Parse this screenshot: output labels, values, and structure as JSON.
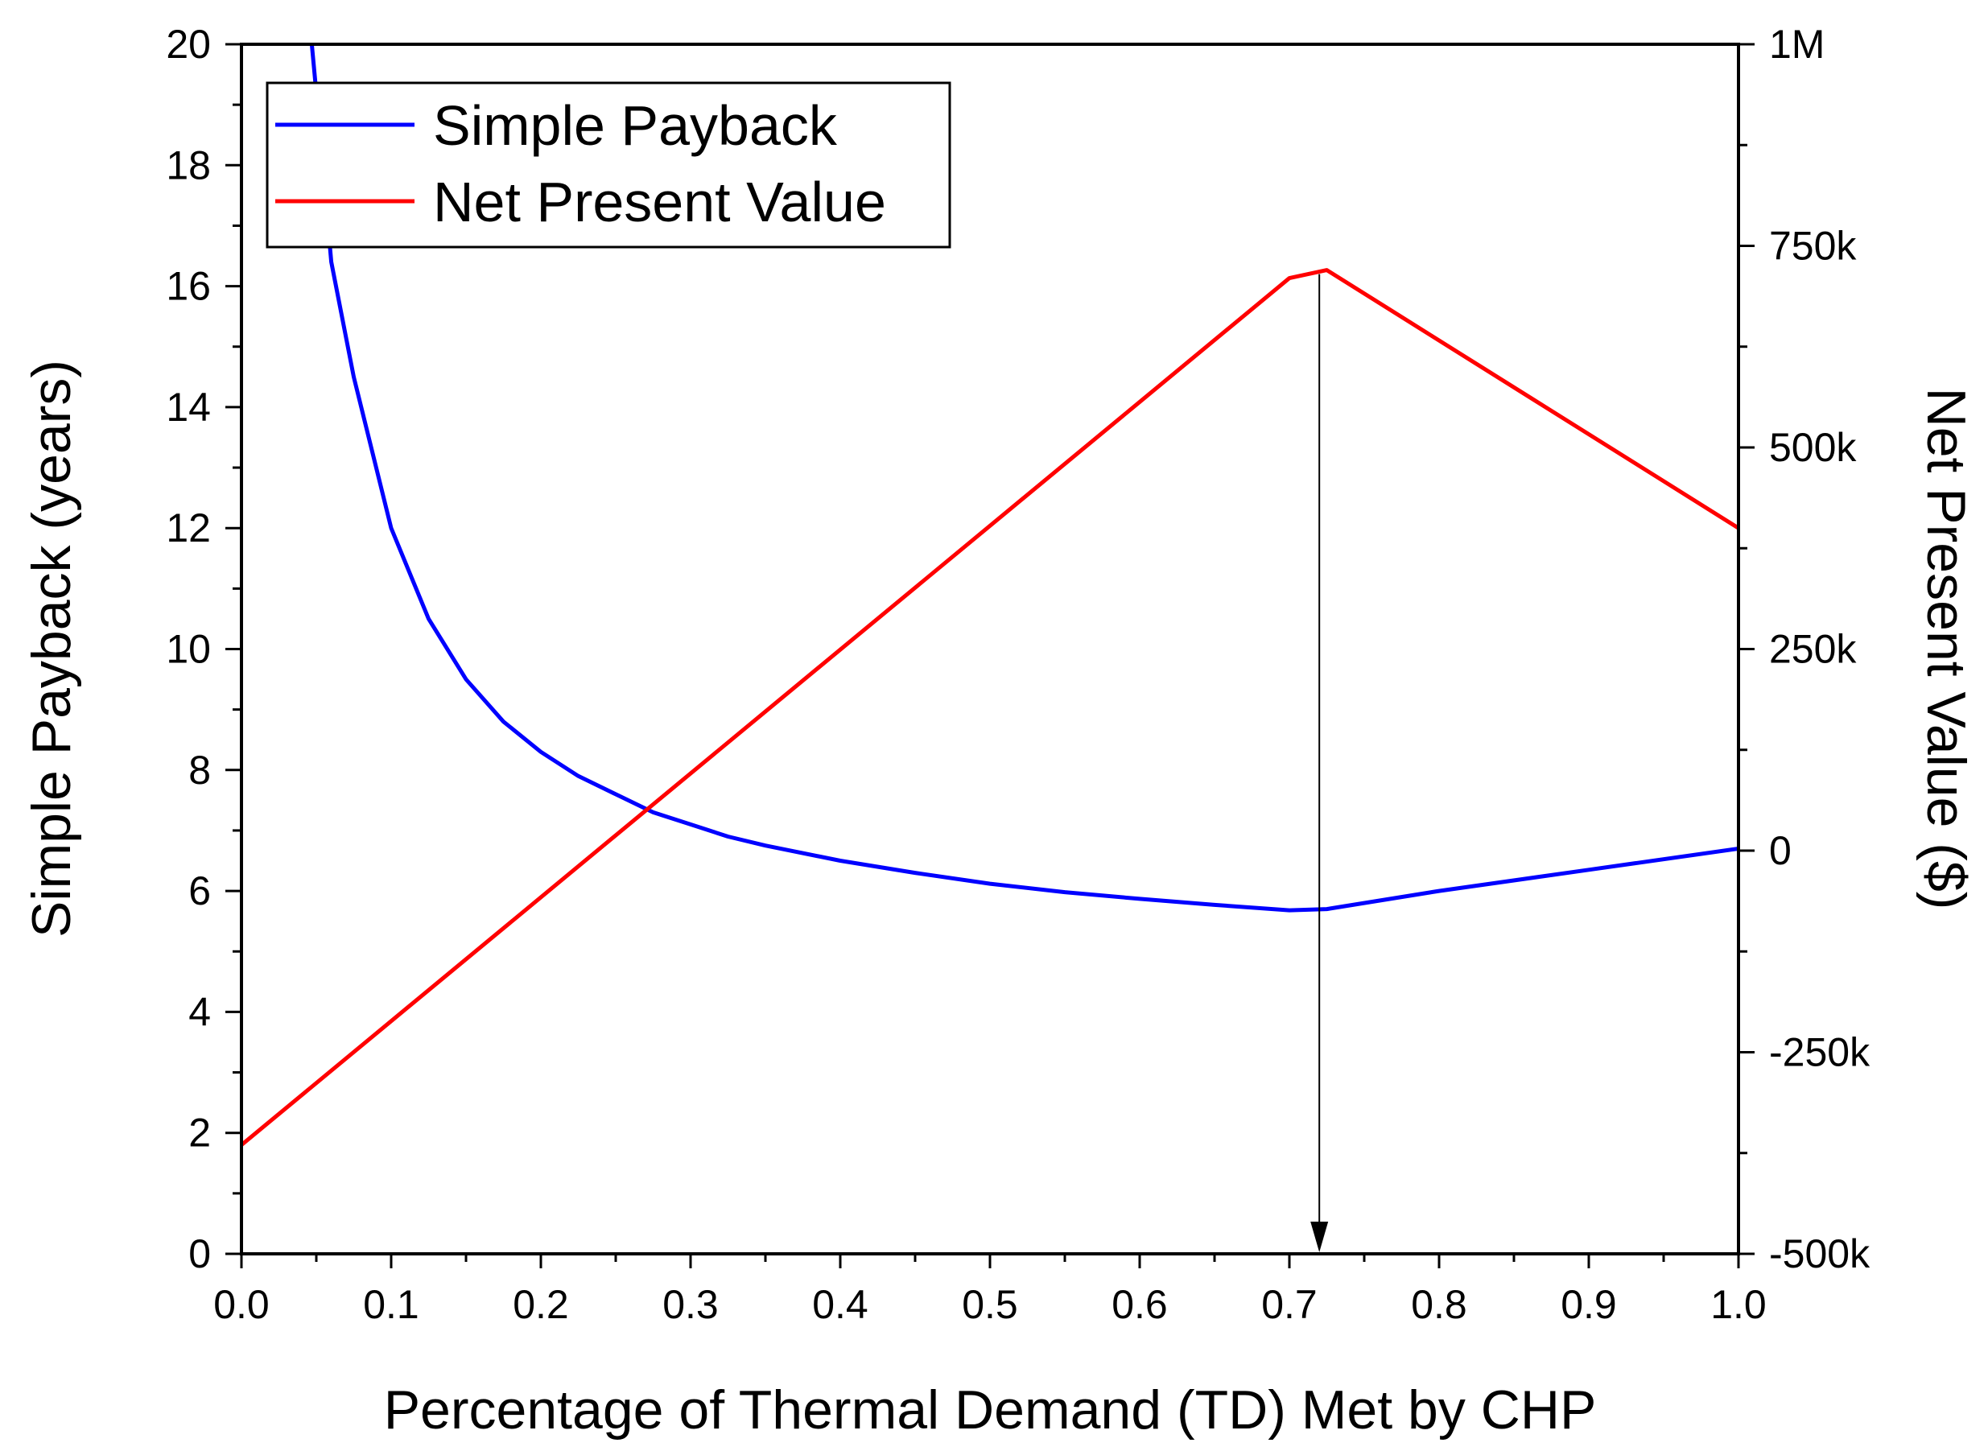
{
  "chart_data": {
    "type": "line",
    "xlabel": "Percentage of Thermal Demand (TD) Met by CHP",
    "ylabel_left": "Simple Payback (years)",
    "ylabel_right": "Net Present Value ($)",
    "xlim": [
      0.0,
      1.0
    ],
    "ylim_left": [
      0,
      20
    ],
    "ylim_right": [
      -500000,
      1000000
    ],
    "x_ticks": [
      "0.0",
      "0.1",
      "0.2",
      "0.3",
      "0.4",
      "0.5",
      "0.6",
      "0.7",
      "0.8",
      "0.9",
      "1.0"
    ],
    "y_ticks_left": [
      "0",
      "2",
      "4",
      "6",
      "8",
      "10",
      "12",
      "14",
      "16",
      "18",
      "20"
    ],
    "y_ticks_right": [
      "-500k",
      "-250k",
      "0",
      "250k",
      "500k",
      "750k",
      "1M"
    ],
    "legend_position": "top-left",
    "series": [
      {
        "name": "Simple Payback",
        "axis": "left",
        "color": "#0000ff",
        "x": [
          0.047,
          0.05,
          0.06,
          0.075,
          0.1,
          0.125,
          0.15,
          0.175,
          0.2,
          0.225,
          0.25,
          0.275,
          0.3,
          0.325,
          0.35,
          0.4,
          0.45,
          0.5,
          0.55,
          0.6,
          0.65,
          0.7,
          0.725,
          0.8,
          0.9,
          1.0
        ],
        "values": [
          20.0,
          19.2,
          16.4,
          14.5,
          12.0,
          10.5,
          9.5,
          8.8,
          8.3,
          7.9,
          7.6,
          7.3,
          7.1,
          6.9,
          6.75,
          6.5,
          6.3,
          6.12,
          5.98,
          5.87,
          5.77,
          5.68,
          5.7,
          6.0,
          6.35,
          6.7
        ]
      },
      {
        "name": "Net Present Value",
        "axis": "right",
        "color": "#ff0000",
        "x": [
          0.0,
          0.7,
          0.725,
          1.0
        ],
        "values": [
          -365000,
          710000,
          720000,
          400000
        ]
      }
    ],
    "annotations": [
      {
        "type": "arrow",
        "x": 0.72,
        "from_y": 16.2,
        "to_y": 0
      }
    ]
  }
}
